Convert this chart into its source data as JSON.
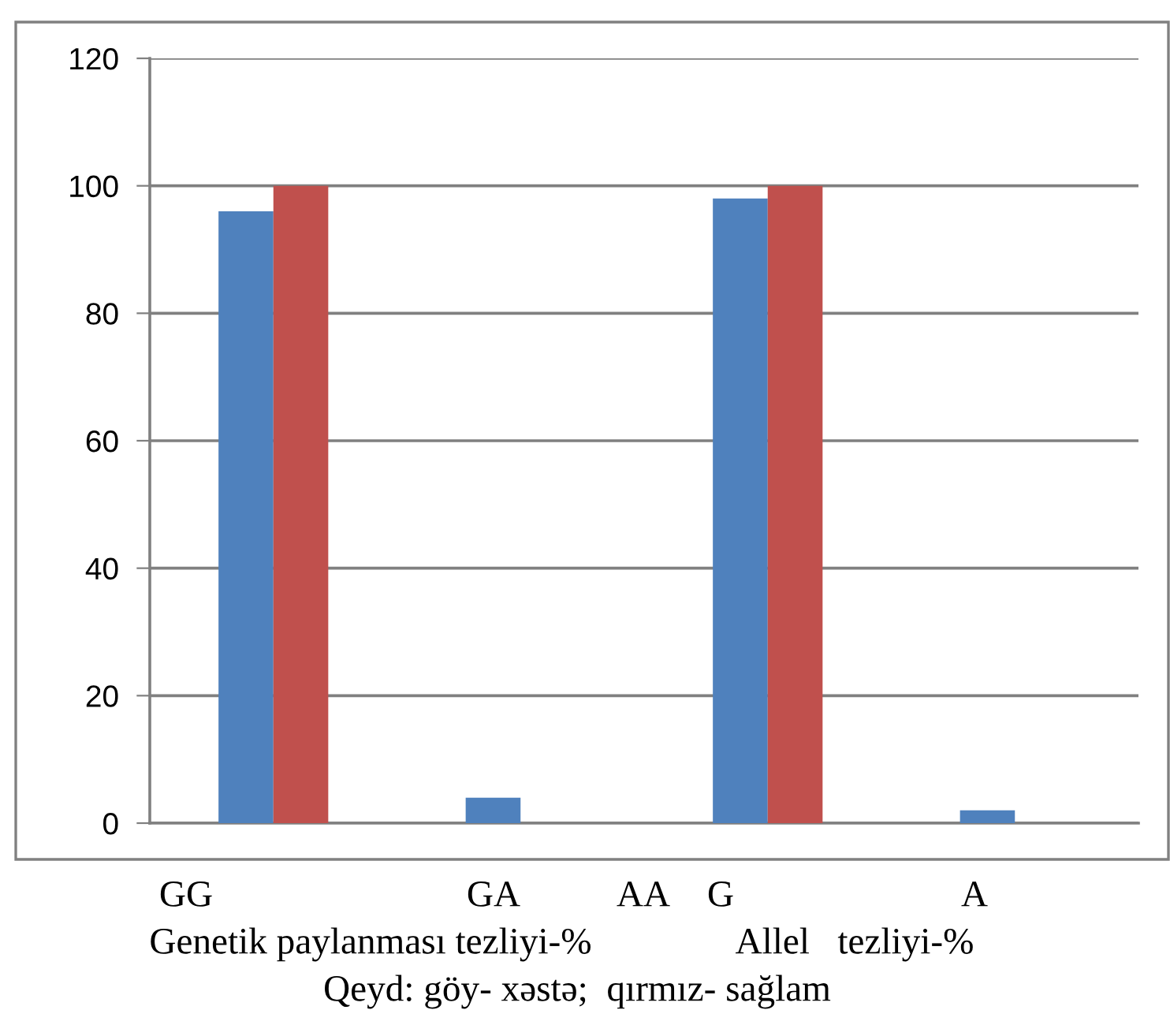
{
  "chart_data": {
    "type": "bar",
    "categories": [
      null,
      null,
      null,
      null
    ],
    "series": [
      {
        "color": "#4f81bd",
        "values": [
          96,
          4,
          98,
          2
        ]
      },
      {
        "color": "#c0504d",
        "values": [
          100,
          null,
          100,
          null
        ]
      }
    ],
    "ylim": [
      0,
      120
    ],
    "yticks": [
      0,
      20,
      40,
      60,
      80,
      100,
      120
    ],
    "grid": "y",
    "tick_labels": "y",
    "annotations": [
      "GG",
      "GA",
      "AA",
      "G",
      "A",
      "Genetik paylanması tezliyi-%",
      "Allel   tezliyi-%",
      "Qeyd: göy- xəstə;  qırmız- sağlam"
    ]
  }
}
